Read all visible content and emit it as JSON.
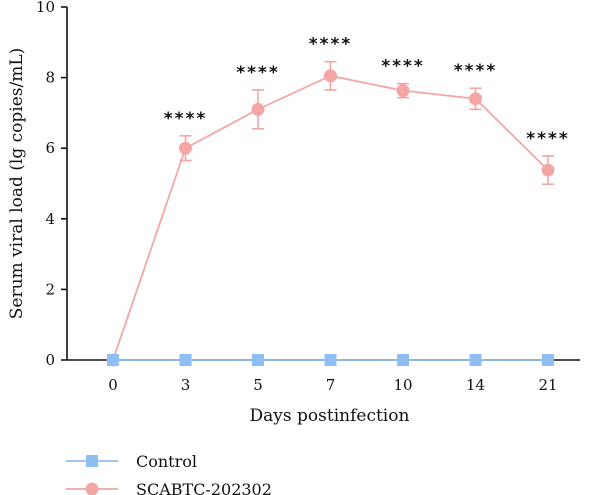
{
  "chart_data": {
    "type": "line",
    "xlabel": "Days postinfection",
    "ylabel": "Serum viral load (lg copies/mL)",
    "ylim": [
      0,
      10
    ],
    "yticks": [
      0,
      2,
      4,
      6,
      8,
      10
    ],
    "categories": [
      "0",
      "3",
      "5",
      "7",
      "10",
      "14",
      "21"
    ],
    "legend_position": "bottom-left",
    "series": [
      {
        "name": "Control",
        "marker": "square",
        "color": "#8fbef2",
        "values": [
          0,
          0,
          0,
          0,
          0,
          0,
          0
        ],
        "errors": [
          0,
          0,
          0,
          0,
          0,
          0,
          0
        ]
      },
      {
        "name": "SCABTC-202302",
        "marker": "circle",
        "color": "#f3a6a3",
        "values": [
          0,
          6.0,
          7.1,
          8.05,
          7.63,
          7.4,
          5.38
        ],
        "errors": [
          0,
          0.35,
          0.55,
          0.4,
          0.2,
          0.3,
          0.4
        ]
      }
    ],
    "significance": [
      "",
      "****",
      "****",
      "****",
      "****",
      "****",
      "****"
    ]
  }
}
